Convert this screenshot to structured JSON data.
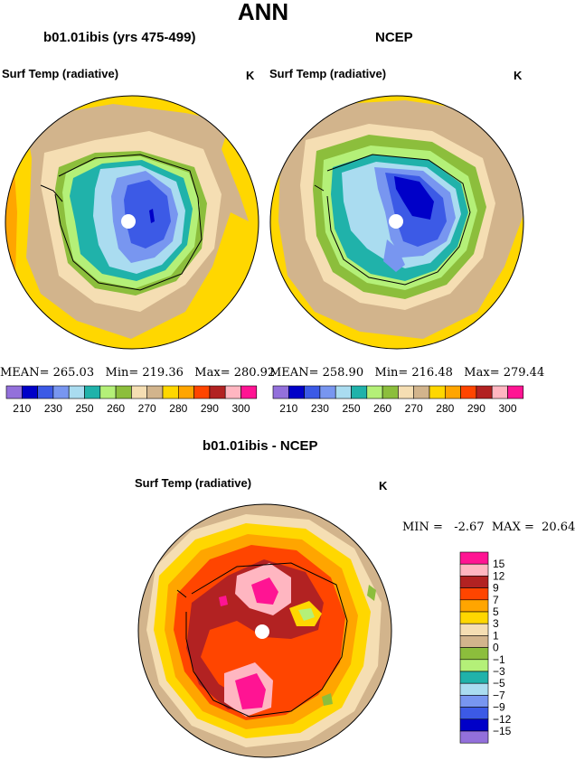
{
  "page": {
    "title": "ANN"
  },
  "panel_left": {
    "title": "b01.01ibis (yrs 475-499)",
    "variable": "Surf Temp (radiative)",
    "units": "K",
    "stats": {
      "mean_label": "MEAN=",
      "mean": "265.03",
      "min_label": "Min=",
      "min": "219.36",
      "max_label": "Max=",
      "max": "280.92"
    }
  },
  "panel_right": {
    "title": "NCEP",
    "variable": "Surf Temp (radiative)",
    "units": "K",
    "stats": {
      "mean_label": "MEAN=",
      "mean": "258.90",
      "min_label": "Min=",
      "min": "216.48",
      "max_label": "Max=",
      "max": "279.44"
    }
  },
  "panel_diff": {
    "title": "b01.01ibis - NCEP",
    "variable": "Surf Temp (radiative)",
    "units": "K",
    "stats": {
      "min_label": "MIN =",
      "min": "-2.67",
      "max_label": "MAX =",
      "max": "20.64"
    }
  },
  "colorbar_abs": {
    "labels": [
      "210",
      "230",
      "250",
      "260",
      "270",
      "280",
      "290",
      "300"
    ],
    "colors": [
      "#9370db",
      "#0000c8",
      "#3c5ae6",
      "#7896f0",
      "#aadcf0",
      "#20b2aa",
      "#b4f078",
      "#8cbe3c",
      "#f5deb3",
      "#d2b48c",
      "#ffd700",
      "#ffa500",
      "#ff4500",
      "#b22222",
      "#ffb6c1",
      "#ff1493"
    ]
  },
  "colorbar_diff": {
    "labels": [
      "15",
      "12",
      "9",
      "7",
      "5",
      "3",
      "1",
      "0",
      "−1",
      "−3",
      "−5",
      "−7",
      "−9",
      "−12",
      "−15"
    ],
    "colors": [
      "#ff1493",
      "#ffb6c1",
      "#b22222",
      "#ff4500",
      "#ffa500",
      "#ffd700",
      "#f5deb3",
      "#d2b48c",
      "#8cbe3c",
      "#b4f078",
      "#20b2aa",
      "#aadcf0",
      "#7896f0",
      "#3c5ae6",
      "#0000c8",
      "#9370db"
    ]
  }
}
